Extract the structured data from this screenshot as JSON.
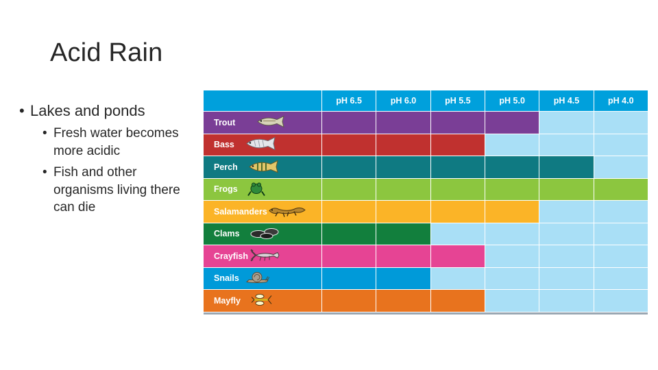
{
  "slide": {
    "title": "Acid Rain",
    "bullet1": "Lakes and ponds",
    "sub_bullets": [
      "Fresh water becomes more acidic",
      "Fish and other organisms living there can die"
    ]
  },
  "chart_data": {
    "type": "table",
    "columns": [
      "pH 6.5",
      "pH 6.0",
      "pH 5.5",
      "pH 5.0",
      "pH 4.5",
      "pH 4.0"
    ],
    "unaffected_color": "#a9dff6",
    "header_color": "#00a0dc",
    "rows": [
      {
        "name": "Trout",
        "color": "#7a3e96",
        "survives": [
          true,
          true,
          true,
          true,
          false,
          false
        ],
        "icon": "trout-icon"
      },
      {
        "name": "Bass",
        "color": "#c0312f",
        "survives": [
          true,
          true,
          true,
          false,
          false,
          false
        ],
        "icon": "bass-icon"
      },
      {
        "name": "Perch",
        "color": "#0f7a82",
        "survives": [
          true,
          true,
          true,
          true,
          true,
          false
        ],
        "icon": "perch-icon"
      },
      {
        "name": "Frogs",
        "color": "#8cc63f",
        "survives": [
          true,
          true,
          true,
          true,
          true,
          true
        ],
        "icon": "frog-icon"
      },
      {
        "name": "Salamanders",
        "color": "#fbb427",
        "survives": [
          true,
          true,
          true,
          true,
          false,
          false
        ],
        "icon": "salamander-icon"
      },
      {
        "name": "Clams",
        "color": "#127f3d",
        "survives": [
          true,
          true,
          false,
          false,
          false,
          false
        ],
        "icon": "clam-icon"
      },
      {
        "name": "Crayfish",
        "color": "#e64494",
        "survives": [
          true,
          true,
          true,
          false,
          false,
          false
        ],
        "icon": "crayfish-icon"
      },
      {
        "name": "Snails",
        "color": "#009ad9",
        "survives": [
          true,
          true,
          false,
          false,
          false,
          false
        ],
        "icon": "snail-icon"
      },
      {
        "name": "Mayfly",
        "color": "#e8731e",
        "survives": [
          true,
          true,
          true,
          false,
          false,
          false
        ],
        "icon": "mayfly-icon"
      }
    ]
  }
}
